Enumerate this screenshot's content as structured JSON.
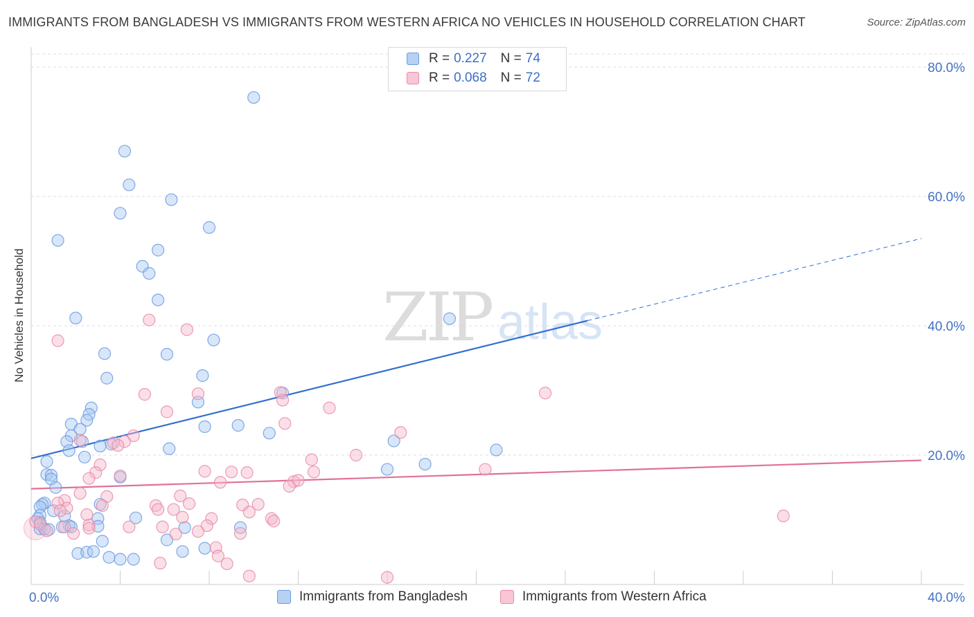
{
  "header": {
    "title": "IMMIGRANTS FROM BANGLADESH VS IMMIGRANTS FROM WESTERN AFRICA NO VEHICLES IN HOUSEHOLD CORRELATION CHART",
    "source": "Source: ZipAtlas.com"
  },
  "legend": {
    "rows": [
      {
        "r_label": "R =",
        "r_value": "0.227",
        "n_label": "N =",
        "n_value": "74"
      },
      {
        "r_label": "R =",
        "r_value": "0.068",
        "n_label": "N =",
        "n_value": "72"
      }
    ]
  },
  "watermark": {
    "zip": "ZIP",
    "atlas": "atlas"
  },
  "colors": {
    "blue_fill": "#a9c8f2",
    "blue_stroke": "#6a9be0",
    "blue_line": "#2f6fcf",
    "pink_fill": "#f5b7c9",
    "pink_stroke": "#e88aa8",
    "pink_line": "#e0709a",
    "tick_label": "#4472c4",
    "grid": "#dddddd"
  },
  "chart_data": {
    "type": "scatter",
    "title": "IMMIGRANTS FROM BANGLADESH VS IMMIGRANTS FROM WESTERN AFRICA NO VEHICLES IN HOUSEHOLD CORRELATION CHART",
    "xlabel": "",
    "ylabel": "No Vehicles in Household",
    "xlim": [
      0,
      40
    ],
    "ylim": [
      0,
      82
    ],
    "x_tick_labels": [
      "0.0%",
      "40.0%"
    ],
    "y_ticks": [
      20,
      40,
      60,
      80
    ],
    "y_tick_labels": [
      "20.0%",
      "40.0%",
      "60.0%",
      "80.0%"
    ],
    "grid": true,
    "legend_position": "top-center",
    "series": [
      {
        "name": "Immigrants from Bangladesh",
        "color": "#a9c8f2",
        "trend": {
          "x0": 0,
          "y0": 19.5,
          "x1": 25,
          "y1": 40.8,
          "dash_to_x": 40,
          "dash_to_y": 53.5
        },
        "points": [
          [
            10,
            75.3
          ],
          [
            4.2,
            67
          ],
          [
            4.4,
            61.8
          ],
          [
            4,
            57.4
          ],
          [
            6.3,
            59.5
          ],
          [
            8,
            55.2
          ],
          [
            1.2,
            53.2
          ],
          [
            5.7,
            51.7
          ],
          [
            5,
            49.2
          ],
          [
            5.3,
            48.1
          ],
          [
            5.7,
            44
          ],
          [
            2,
            41.2
          ],
          [
            18.8,
            41.1
          ],
          [
            8.2,
            37.8
          ],
          [
            3.3,
            35.7
          ],
          [
            6.1,
            35.6
          ],
          [
            3.4,
            31.9
          ],
          [
            7.7,
            32.3
          ],
          [
            11.3,
            29.6
          ],
          [
            7.5,
            28.2
          ],
          [
            2.7,
            27.3
          ],
          [
            2.6,
            26.3
          ],
          [
            2.5,
            25.4
          ],
          [
            1.8,
            24.8
          ],
          [
            2.2,
            24
          ],
          [
            9.3,
            24.6
          ],
          [
            7.8,
            24.4
          ],
          [
            10.7,
            23.4
          ],
          [
            1.8,
            23
          ],
          [
            1.6,
            22.1
          ],
          [
            2.3,
            22.1
          ],
          [
            16.3,
            22.2
          ],
          [
            3.6,
            21.7
          ],
          [
            3.1,
            21.4
          ],
          [
            6.2,
            21
          ],
          [
            1.7,
            20.7
          ],
          [
            20.9,
            20.8
          ],
          [
            2.4,
            19.7
          ],
          [
            0.7,
            19
          ],
          [
            17.7,
            18.6
          ],
          [
            16,
            17.8
          ],
          [
            0.7,
            17
          ],
          [
            0.9,
            16.9
          ],
          [
            4,
            16.6
          ],
          [
            0.9,
            16.3
          ],
          [
            1.1,
            15
          ],
          [
            0.6,
            12.6
          ],
          [
            0.5,
            12.4
          ],
          [
            3.1,
            12.4
          ],
          [
            0.4,
            12
          ],
          [
            1,
            11.4
          ],
          [
            0.4,
            10.7
          ],
          [
            1.5,
            10.6
          ],
          [
            0.3,
            10.2
          ],
          [
            3,
            10.2
          ],
          [
            4.7,
            10.3
          ],
          [
            0.4,
            9.6
          ],
          [
            1.7,
            9.1
          ],
          [
            3,
            9
          ],
          [
            1.4,
            8.9
          ],
          [
            1.8,
            8.9
          ],
          [
            6.9,
            8.8
          ],
          [
            9.4,
            8.8
          ],
          [
            0.4,
            8.6
          ],
          [
            0.6,
            8.6
          ],
          [
            0.8,
            8.5
          ],
          [
            3.2,
            6.7
          ],
          [
            6.1,
            6.9
          ],
          [
            2.1,
            4.8
          ],
          [
            2.5,
            5
          ],
          [
            2.8,
            5.1
          ],
          [
            6.8,
            5.1
          ],
          [
            7.8,
            5.6
          ],
          [
            3.5,
            4.2
          ],
          [
            4,
            3.9
          ],
          [
            4.6,
            3.9
          ]
        ]
      },
      {
        "name": "Immigrants from Western Africa",
        "color": "#f5b7c9",
        "trend": {
          "x0": 0,
          "y0": 14.8,
          "x1": 40,
          "y1": 19.2
        },
        "points": [
          [
            1.2,
            37.7
          ],
          [
            5.3,
            40.9
          ],
          [
            7,
            39.4
          ],
          [
            11.2,
            29.7
          ],
          [
            11.3,
            28.5
          ],
          [
            5.1,
            29.4
          ],
          [
            7.5,
            29.5
          ],
          [
            23.1,
            29.6
          ],
          [
            13.4,
            27.3
          ],
          [
            6.1,
            26.7
          ],
          [
            11.4,
            24.9
          ],
          [
            16.6,
            23.5
          ],
          [
            4.6,
            23
          ],
          [
            2.2,
            22.3
          ],
          [
            4.2,
            22.1
          ],
          [
            3.7,
            21.9
          ],
          [
            3.9,
            21.5
          ],
          [
            14.6,
            20
          ],
          [
            12.6,
            19.3
          ],
          [
            3.1,
            18.5
          ],
          [
            2.9,
            17.3
          ],
          [
            9.7,
            17.3
          ],
          [
            9,
            17.4
          ],
          [
            12.7,
            17.4
          ],
          [
            20.4,
            17.8
          ],
          [
            4,
            16.8
          ],
          [
            7.8,
            17.5
          ],
          [
            2.6,
            16.4
          ],
          [
            8.5,
            15.8
          ],
          [
            11.8,
            15.9
          ],
          [
            12,
            16.1
          ],
          [
            11.6,
            15.2
          ],
          [
            2.2,
            14.1
          ],
          [
            3.4,
            13.6
          ],
          [
            6.7,
            13.7
          ],
          [
            1.5,
            13
          ],
          [
            1.2,
            12.6
          ],
          [
            7.1,
            12.5
          ],
          [
            9.5,
            12.3
          ],
          [
            10.2,
            12.4
          ],
          [
            5.6,
            12.2
          ],
          [
            3.2,
            12.2
          ],
          [
            1.6,
            11.8
          ],
          [
            5.7,
            11.6
          ],
          [
            6.4,
            11.6
          ],
          [
            1.3,
            11.4
          ],
          [
            9.8,
            11.2
          ],
          [
            2.5,
            10.8
          ],
          [
            8.1,
            10.2
          ],
          [
            10.8,
            10.2
          ],
          [
            33.8,
            10.6
          ],
          [
            6.8,
            10.4
          ],
          [
            10.9,
            9.8
          ],
          [
            0.2,
            9.7
          ],
          [
            0.4,
            9.3
          ],
          [
            7.9,
            9.1
          ],
          [
            2.6,
            9.2
          ],
          [
            4.4,
            8.9
          ],
          [
            5.9,
            8.9
          ],
          [
            1.5,
            8.9
          ],
          [
            2.6,
            8.7
          ],
          [
            0.7,
            8.3
          ],
          [
            7.5,
            8.2
          ],
          [
            6.5,
            7.8
          ],
          [
            9.4,
            7.9
          ],
          [
            1.9,
            7.9
          ],
          [
            8.3,
            5.7
          ],
          [
            8.4,
            4.4
          ],
          [
            8.8,
            3.2
          ],
          [
            5.8,
            3.3
          ],
          [
            9.8,
            1.3
          ],
          [
            16,
            1.1
          ]
        ]
      }
    ]
  },
  "bottom_legend": {
    "items": [
      {
        "label": "Immigrants from Bangladesh"
      },
      {
        "label": "Immigrants from Western Africa"
      }
    ]
  }
}
